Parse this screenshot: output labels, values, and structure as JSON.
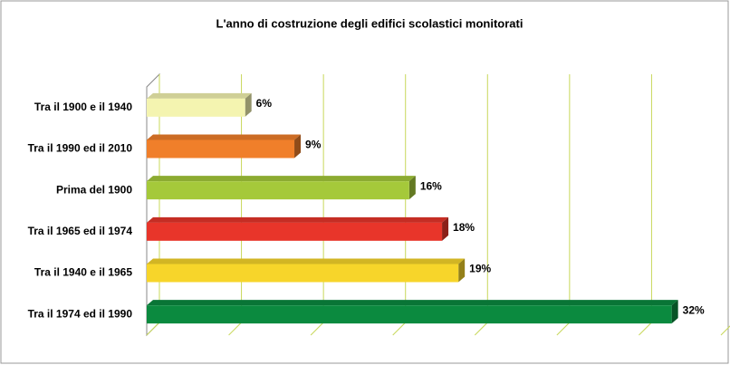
{
  "chart_data": {
    "type": "bar",
    "orientation": "horizontal",
    "title": "L'anno di costruzione degli edifici scolastici monitorati",
    "categories": [
      "Tra il 1900 e il 1940",
      "Tra il 1990 ed il 2010",
      "Prima del 1900",
      "Tra il 1965 ed il 1974",
      "Tra il 1940 e il 1965",
      "Tra il 1974 ed il 1990"
    ],
    "values": [
      6,
      9,
      16,
      18,
      19,
      32
    ],
    "value_labels": [
      "6%",
      "9%",
      "16%",
      "18%",
      "19%",
      "32%"
    ],
    "colors": [
      "#f4f4b0",
      "#f07f2a",
      "#a5c93a",
      "#e8352a",
      "#f7d52a",
      "#0b8a3f"
    ],
    "xlim": [
      0,
      35
    ],
    "xticks": [
      0,
      5,
      10,
      15,
      20,
      25,
      30,
      35
    ],
    "grid": true
  }
}
